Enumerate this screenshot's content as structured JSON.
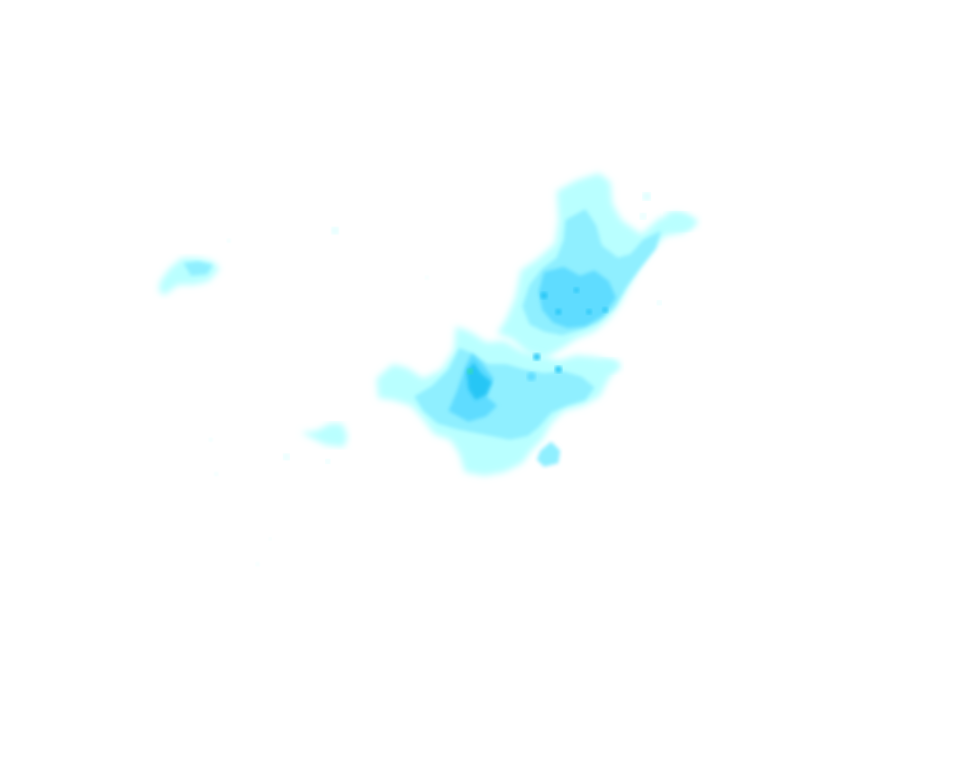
{
  "map": {
    "background_color": "#ffffff",
    "layer": "precipitation",
    "palette": {
      "light": "#b9ffff",
      "medium": "#8fefff",
      "strong": "#5fdcff",
      "heavy": "#27c6f5",
      "core": "#35e0a8"
    }
  }
}
